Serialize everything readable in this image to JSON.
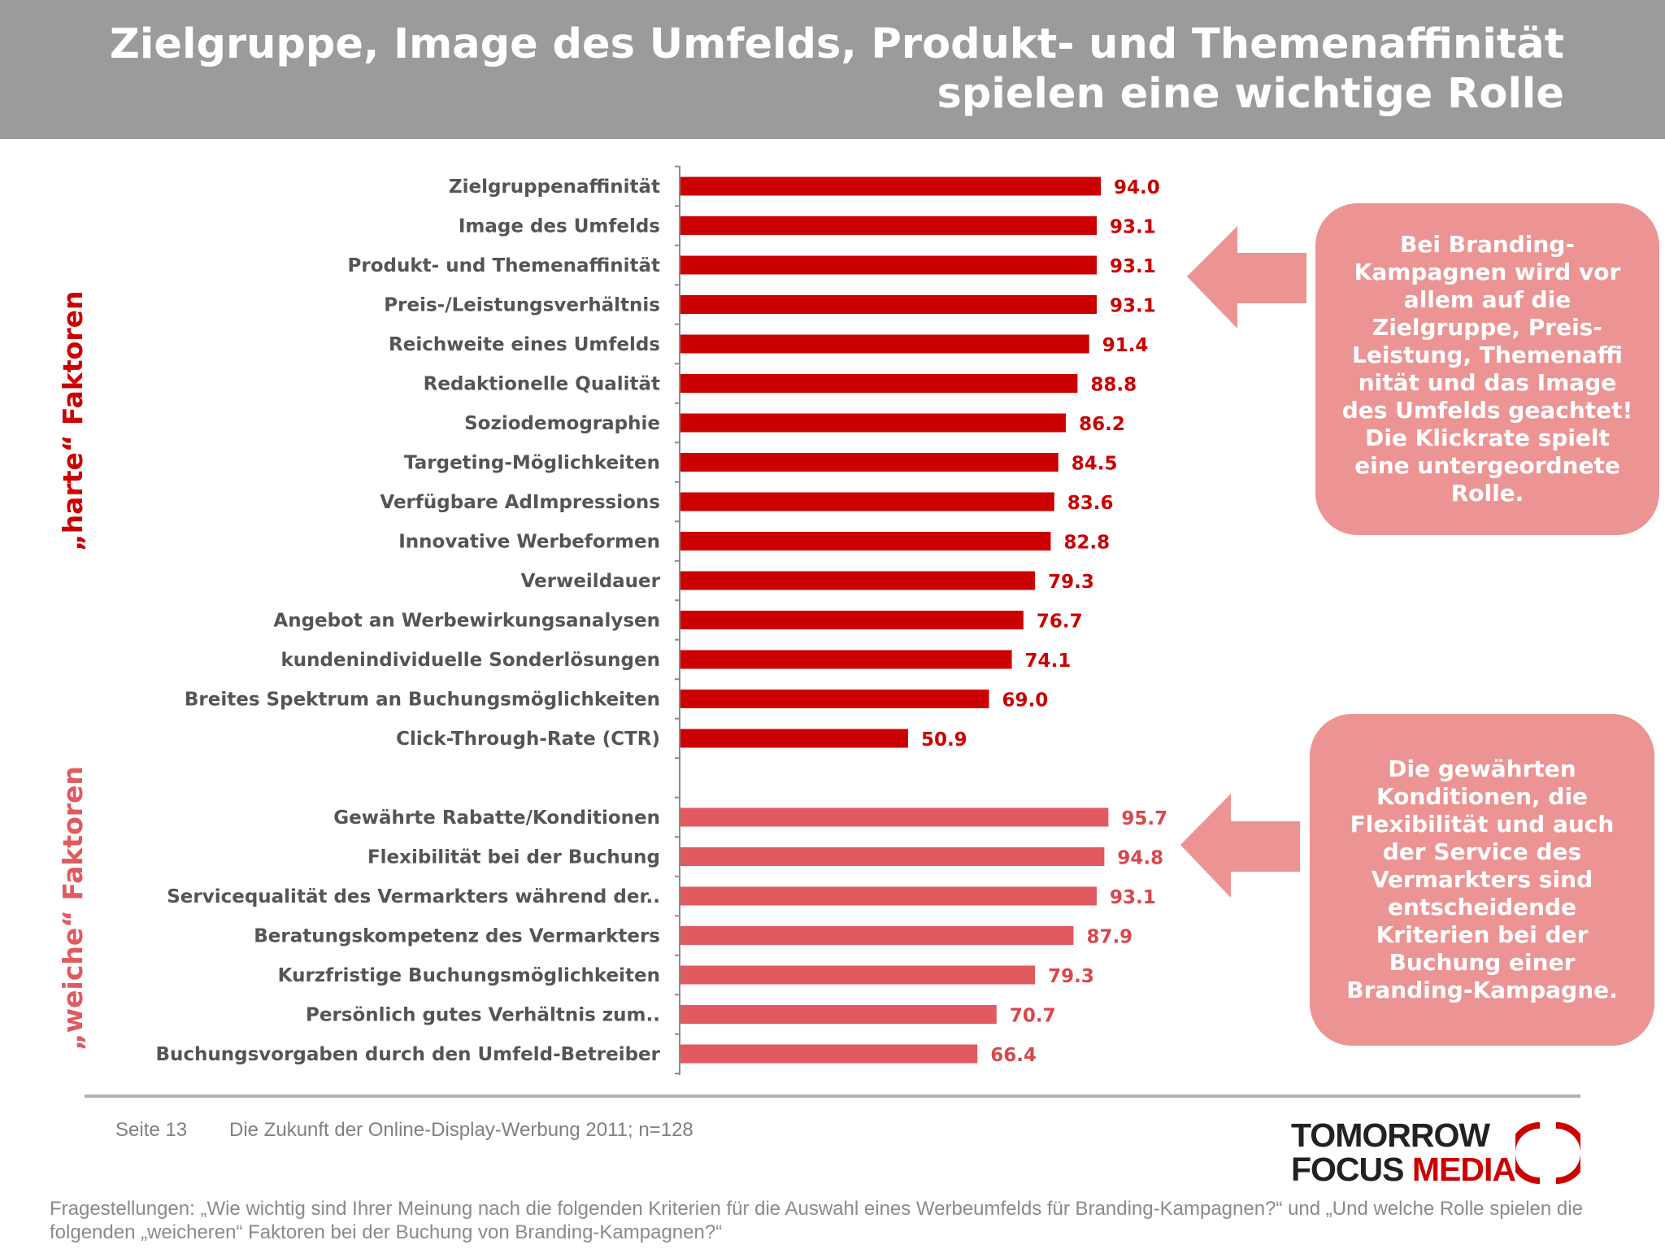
{
  "header": {
    "title_line1": "Zielgruppe, Image des Umfelds, Produkt- und Themenaffinität",
    "title_line2": "spielen eine wichtige Rolle"
  },
  "groups": {
    "hard_label": "„harte“ Faktoren",
    "soft_label": "„weiche“ Faktoren"
  },
  "callouts": {
    "hard": "Bei Branding-Kampagnen wird vor allem auf die Zielgruppe, Preis-Leistung, Themenaffi nität und das Image des Umfelds geachtet! Die Klickrate spielt eine untergeordnete Rolle.",
    "soft": "Die gewährten Konditionen, die Flexibilität und auch der Service des Vermarkters sind entscheidende Kriterien bei der Buchung einer Branding-Kampagne."
  },
  "colors": {
    "hard": "#cc0000",
    "soft": "#e05a5f",
    "callout": "#ec9494",
    "header": "#9b9b9b"
  },
  "chart_data": {
    "type": "bar",
    "orientation": "horizontal",
    "series": [
      {
        "categories": [
          "Zielgruppenaffinität",
          "Image des Umfelds",
          "Produkt- und Themenaffinität",
          "Preis-/Leistungsverhältnis",
          "Reichweite eines Umfelds",
          "Redaktionelle Qualität",
          "Soziodemographie",
          "Targeting-Möglichkeiten",
          "Verfügbare AdImpressions",
          "Innovative Werbeformen",
          "Verweildauer",
          "Angebot an Werbewirkungsanalysen",
          "kundenindividuelle Sonderlösungen",
          "Breites Spektrum an Buchungsmöglichkeiten",
          "Click-Through-Rate (CTR)"
        ],
        "values": [
          94.0,
          93.1,
          93.1,
          93.1,
          91.4,
          88.8,
          86.2,
          84.5,
          83.6,
          82.8,
          79.3,
          76.7,
          74.1,
          69.0,
          50.9
        ],
        "labels": [
          "94.0",
          "93.1",
          "93.1",
          "93.1",
          "91.4",
          "88.8",
          "86.2",
          "84.5",
          "83.6",
          "82.8",
          "79.3",
          "76.7",
          "74.1",
          "69.0",
          "50.9"
        ]
      },
      {
        "categories": [
          "Gewährte Rabatte/Konditionen",
          "Flexibilität bei der Buchung",
          "Servicequalität des Vermarkters während der..",
          "Beratungskompetenz des Vermarkters",
          "Kurzfristige Buchungsmöglichkeiten",
          "Persönlich gutes Verhältnis zum..",
          "Buchungsvorgaben durch den Umfeld-Betreiber"
        ],
        "values": [
          95.7,
          94.8,
          93.1,
          87.9,
          79.3,
          70.7,
          66.4
        ],
        "labels": [
          "95.7",
          "94.8",
          "93.1",
          "87.9",
          "79.3",
          "70.7",
          "66.4"
        ]
      }
    ],
    "xlim": [
      0,
      100
    ]
  },
  "footer": {
    "page": "Seite 13",
    "source": "Die Zukunft der Online-Display-Werbung 2011; n=128",
    "note": "Fragestellungen: „Wie wichtig sind Ihrer Meinung nach die folgenden Kriterien für die Auswahl eines Werbeumfelds für Branding-Kampagnen?“ und „Und welche Rolle spielen die folgenden „weicheren“ Faktoren bei der Buchung von Branding-Kampagnen?“",
    "logo_line1": "TOMORROW",
    "logo_line2a": "FOCUS ",
    "logo_line2b": "MEDIA"
  }
}
